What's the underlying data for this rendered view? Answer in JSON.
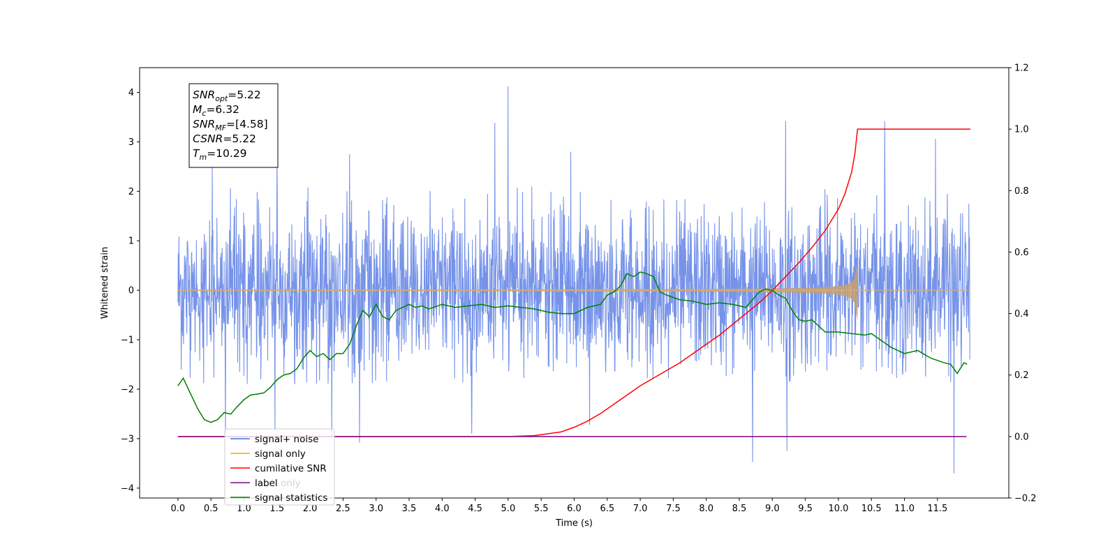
{
  "chart_data": {
    "type": "line",
    "xlabel": "Time (s)",
    "ylabel": "Whitened strain",
    "xlim": [
      -0.58,
      12.58
    ],
    "ylim": [
      -4.2,
      4.5
    ],
    "y2lim": [
      -0.2,
      1.2
    ],
    "x_ticks": [
      "0.0",
      "0.5",
      "1.0",
      "1.5",
      "2.0",
      "2.5",
      "3.0",
      "3.5",
      "4.0",
      "4.5",
      "5.0",
      "5.5",
      "6.0",
      "6.5",
      "7.0",
      "7.5",
      "8.0",
      "8.5",
      "9.0",
      "9.5",
      "10.0",
      "10.5",
      "11.0",
      "11.5"
    ],
    "y_ticks": [
      "4",
      "3",
      "2",
      "1",
      "0",
      "−1",
      "−2",
      "−3",
      "−4"
    ],
    "y2_ticks": [
      "1.2",
      "1.0",
      "0.8",
      "0.6",
      "0.4",
      "0.2",
      "0.0",
      "−0.2"
    ],
    "grid": false,
    "legend_position": "lower-left",
    "info_box": {
      "snr_opt": "=5.22",
      "mc": "=6.32",
      "snr_mf": "=[4.58]",
      "csnr": "=5.22",
      "tm": "=10.29"
    },
    "noise": {
      "color": "#4169e1",
      "t_start": 0.0,
      "t_end": 11.99,
      "typical_range": [
        -1.9,
        2.1
      ],
      "peaks": [
        {
          "t": 0.52,
          "v": 2.5
        },
        {
          "t": 0.72,
          "v": -2.9
        },
        {
          "t": 1.5,
          "v": 2.6
        },
        {
          "t": 1.47,
          "v": -2.8
        },
        {
          "t": 2.33,
          "v": -2.95
        },
        {
          "t": 2.6,
          "v": 2.75
        },
        {
          "t": 2.75,
          "v": -3.08
        },
        {
          "t": 4.45,
          "v": -2.9
        },
        {
          "t": 4.8,
          "v": 3.38
        },
        {
          "t": 5.0,
          "v": 4.12
        },
        {
          "t": 5.95,
          "v": 2.8
        },
        {
          "t": 6.23,
          "v": -2.72
        },
        {
          "t": 8.7,
          "v": -3.47
        },
        {
          "t": 9.2,
          "v": 3.42
        },
        {
          "t": 9.22,
          "v": -3.25
        },
        {
          "t": 10.7,
          "v": 3.42
        },
        {
          "t": 11.47,
          "v": 3.06
        },
        {
          "t": 11.75,
          "v": -3.7
        }
      ]
    },
    "signal": {
      "color": "#ffa500",
      "t_start": 0.0,
      "t_merger": 10.29,
      "peak_amplitude": 0.55
    },
    "series": [
      {
        "name": "cumilative SNR",
        "color": "#ff0000",
        "axis": "right",
        "x": [
          0.0,
          5.0,
          5.4,
          5.8,
          6.0,
          6.2,
          6.4,
          6.6,
          6.8,
          7.0,
          7.2,
          7.4,
          7.6,
          7.8,
          8.0,
          8.2,
          8.4,
          8.6,
          8.8,
          9.0,
          9.2,
          9.4,
          9.6,
          9.8,
          10.0,
          10.1,
          10.2,
          10.25,
          10.29,
          12.0
        ],
        "y": [
          0.0,
          0.0,
          0.003,
          0.015,
          0.03,
          0.05,
          0.075,
          0.105,
          0.135,
          0.165,
          0.19,
          0.215,
          0.24,
          0.27,
          0.3,
          0.33,
          0.365,
          0.4,
          0.435,
          0.475,
          0.52,
          0.565,
          0.615,
          0.67,
          0.74,
          0.79,
          0.86,
          0.92,
          1.0,
          1.0
        ]
      },
      {
        "name": "label",
        "color": "#800080",
        "axis": "right",
        "x": [
          0.0,
          11.94
        ],
        "y": [
          0.0,
          0.0
        ]
      },
      {
        "name": "signal statistics",
        "color": "#008000",
        "axis": "right",
        "x": [
          0.0,
          0.08,
          0.2,
          0.3,
          0.4,
          0.5,
          0.6,
          0.7,
          0.8,
          0.9,
          1.0,
          1.1,
          1.2,
          1.3,
          1.4,
          1.5,
          1.6,
          1.7,
          1.8,
          1.9,
          2.0,
          2.1,
          2.2,
          2.3,
          2.4,
          2.5,
          2.6,
          2.7,
          2.8,
          2.9,
          3.0,
          3.1,
          3.2,
          3.3,
          3.4,
          3.5,
          3.6,
          3.7,
          3.8,
          4.0,
          4.2,
          4.4,
          4.6,
          4.8,
          5.0,
          5.2,
          5.4,
          5.6,
          5.8,
          6.0,
          6.2,
          6.4,
          6.5,
          6.6,
          6.7,
          6.8,
          6.9,
          7.0,
          7.1,
          7.2,
          7.3,
          7.4,
          7.6,
          7.8,
          8.0,
          8.2,
          8.4,
          8.6,
          8.7,
          8.8,
          8.9,
          9.0,
          9.1,
          9.2,
          9.3,
          9.4,
          9.5,
          9.6,
          9.8,
          10.0,
          10.2,
          10.4,
          10.5,
          10.6,
          10.8,
          11.0,
          11.2,
          11.4,
          11.6,
          11.7,
          11.8,
          11.9,
          11.95
        ],
        "y": [
          0.165,
          0.19,
          0.135,
          0.09,
          0.055,
          0.046,
          0.055,
          0.078,
          0.073,
          0.098,
          0.12,
          0.135,
          0.138,
          0.142,
          0.16,
          0.185,
          0.2,
          0.205,
          0.22,
          0.255,
          0.28,
          0.26,
          0.27,
          0.25,
          0.27,
          0.27,
          0.3,
          0.36,
          0.41,
          0.39,
          0.43,
          0.39,
          0.38,
          0.41,
          0.42,
          0.43,
          0.42,
          0.425,
          0.415,
          0.43,
          0.42,
          0.425,
          0.43,
          0.42,
          0.425,
          0.42,
          0.415,
          0.405,
          0.4,
          0.4,
          0.42,
          0.43,
          0.46,
          0.47,
          0.49,
          0.53,
          0.52,
          0.535,
          0.53,
          0.52,
          0.47,
          0.46,
          0.445,
          0.44,
          0.43,
          0.435,
          0.43,
          0.42,
          0.445,
          0.47,
          0.48,
          0.475,
          0.46,
          0.45,
          0.41,
          0.38,
          0.375,
          0.38,
          0.34,
          0.34,
          0.335,
          0.33,
          0.335,
          0.32,
          0.29,
          0.27,
          0.28,
          0.255,
          0.24,
          0.235,
          0.205,
          0.24,
          0.235
        ]
      }
    ],
    "legend": [
      {
        "label": "signal+ noise",
        "color": "#4169e1"
      },
      {
        "label": "signal only",
        "color": "#ffa500"
      },
      {
        "label": "cumilative SNR",
        "color": "#ff0000"
      },
      {
        "label": "label",
        "color": "#800080"
      },
      {
        "label": "signal statistics",
        "color": "#008000"
      }
    ],
    "occluded_labels": [
      {
        "text": "label only",
        "color": "#000000"
      }
    ]
  }
}
